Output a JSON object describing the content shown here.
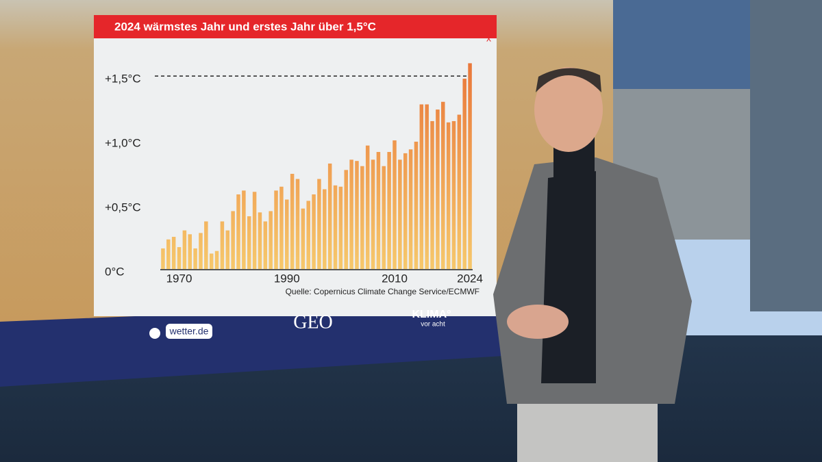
{
  "chart_data": {
    "type": "bar",
    "title": "2024 wärmstes Jahr und erstes Jahr über 1,5°C",
    "source": "Quelle: Copernicus Climate Change Service/ECMWF",
    "categories": [
      null,
      null,
      null,
      "1970",
      null,
      null,
      null,
      null,
      null,
      null,
      null,
      null,
      null,
      null,
      null,
      null,
      null,
      null,
      null,
      null,
      null,
      null,
      null,
      "1990",
      null,
      null,
      null,
      null,
      null,
      null,
      null,
      null,
      null,
      null,
      null,
      null,
      null,
      null,
      null,
      null,
      null,
      null,
      null,
      "2010",
      null,
      null,
      null,
      null,
      null,
      null,
      null,
      null,
      null,
      null,
      null,
      null,
      null,
      "2024"
    ],
    "values": [
      0.16,
      0.23,
      0.25,
      0.17,
      0.3,
      0.27,
      0.16,
      0.28,
      0.37,
      0.12,
      0.14,
      0.37,
      0.3,
      0.45,
      0.58,
      0.61,
      0.41,
      0.6,
      0.44,
      0.37,
      0.45,
      0.61,
      0.64,
      0.54,
      0.74,
      0.7,
      0.47,
      0.53,
      0.58,
      0.7,
      0.62,
      0.82,
      0.65,
      0.64,
      0.77,
      0.85,
      0.84,
      0.8,
      0.96,
      0.85,
      0.91,
      0.8,
      0.91,
      1.0,
      0.85,
      0.9,
      0.93,
      0.99,
      1.28,
      1.28,
      1.15,
      1.24,
      1.3,
      1.14,
      1.15,
      1.2,
      1.48,
      1.6
    ],
    "color": "#e9773a",
    "ylim": [
      0,
      1.65
    ],
    "yticks": [
      {
        "value": 0,
        "label": "0°C"
      },
      {
        "value": 0.5,
        "label": "+0,5°C"
      },
      {
        "value": 1.0,
        "label": "+1,0°C"
      },
      {
        "value": 1.5,
        "label": "+1,5°C"
      }
    ],
    "threshold": 1.5,
    "grid": false
  },
  "close": "x",
  "logos": [
    "wetter.de",
    "GEO",
    "KLIMA°",
    "vor acht"
  ]
}
